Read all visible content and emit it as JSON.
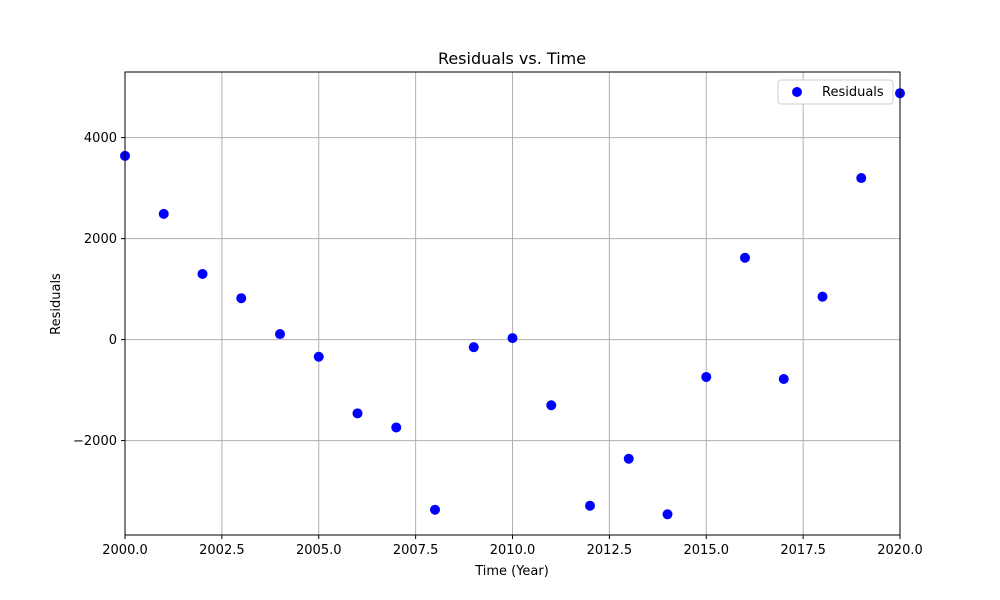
{
  "chart_data": {
    "type": "scatter",
    "title": "Residuals vs. Time",
    "xlabel": "Time (Year)",
    "ylabel": "Residuals",
    "xlim": [
      2000,
      2020
    ],
    "ylim": [
      -3870,
      5300
    ],
    "x_ticks": [
      2000,
      2002.5,
      2005,
      2007.5,
      2010,
      2012.5,
      2015,
      2017.5,
      2020
    ],
    "x_tick_labels": [
      "2000.0",
      "2002.5",
      "2005.0",
      "2007.5",
      "2010.0",
      "2012.5",
      "2015.0",
      "2017.5",
      "2020.0"
    ],
    "y_ticks": [
      -2000,
      0,
      2000,
      4000
    ],
    "y_tick_labels": [
      "−2000",
      "0",
      "2000",
      "4000"
    ],
    "grid": true,
    "legend": "top-right",
    "series": [
      {
        "name": "Residuals",
        "color": "#0000ff",
        "points": [
          {
            "x": 2000,
            "y": 3640
          },
          {
            "x": 2001,
            "y": 2490
          },
          {
            "x": 2002,
            "y": 1300
          },
          {
            "x": 2003,
            "y": 820
          },
          {
            "x": 2004,
            "y": 110
          },
          {
            "x": 2005,
            "y": -340
          },
          {
            "x": 2006,
            "y": -1460
          },
          {
            "x": 2007,
            "y": -1740
          },
          {
            "x": 2008,
            "y": -3370
          },
          {
            "x": 2009,
            "y": -150
          },
          {
            "x": 2010,
            "y": 30
          },
          {
            "x": 2011,
            "y": -1300
          },
          {
            "x": 2012,
            "y": -3290
          },
          {
            "x": 2013,
            "y": -2360
          },
          {
            "x": 2014,
            "y": -3460
          },
          {
            "x": 2015,
            "y": -740
          },
          {
            "x": 2016,
            "y": 1620
          },
          {
            "x": 2017,
            "y": -780
          },
          {
            "x": 2018,
            "y": 850
          },
          {
            "x": 2019,
            "y": 3200
          },
          {
            "x": 2020,
            "y": 4880
          }
        ]
      }
    ]
  }
}
